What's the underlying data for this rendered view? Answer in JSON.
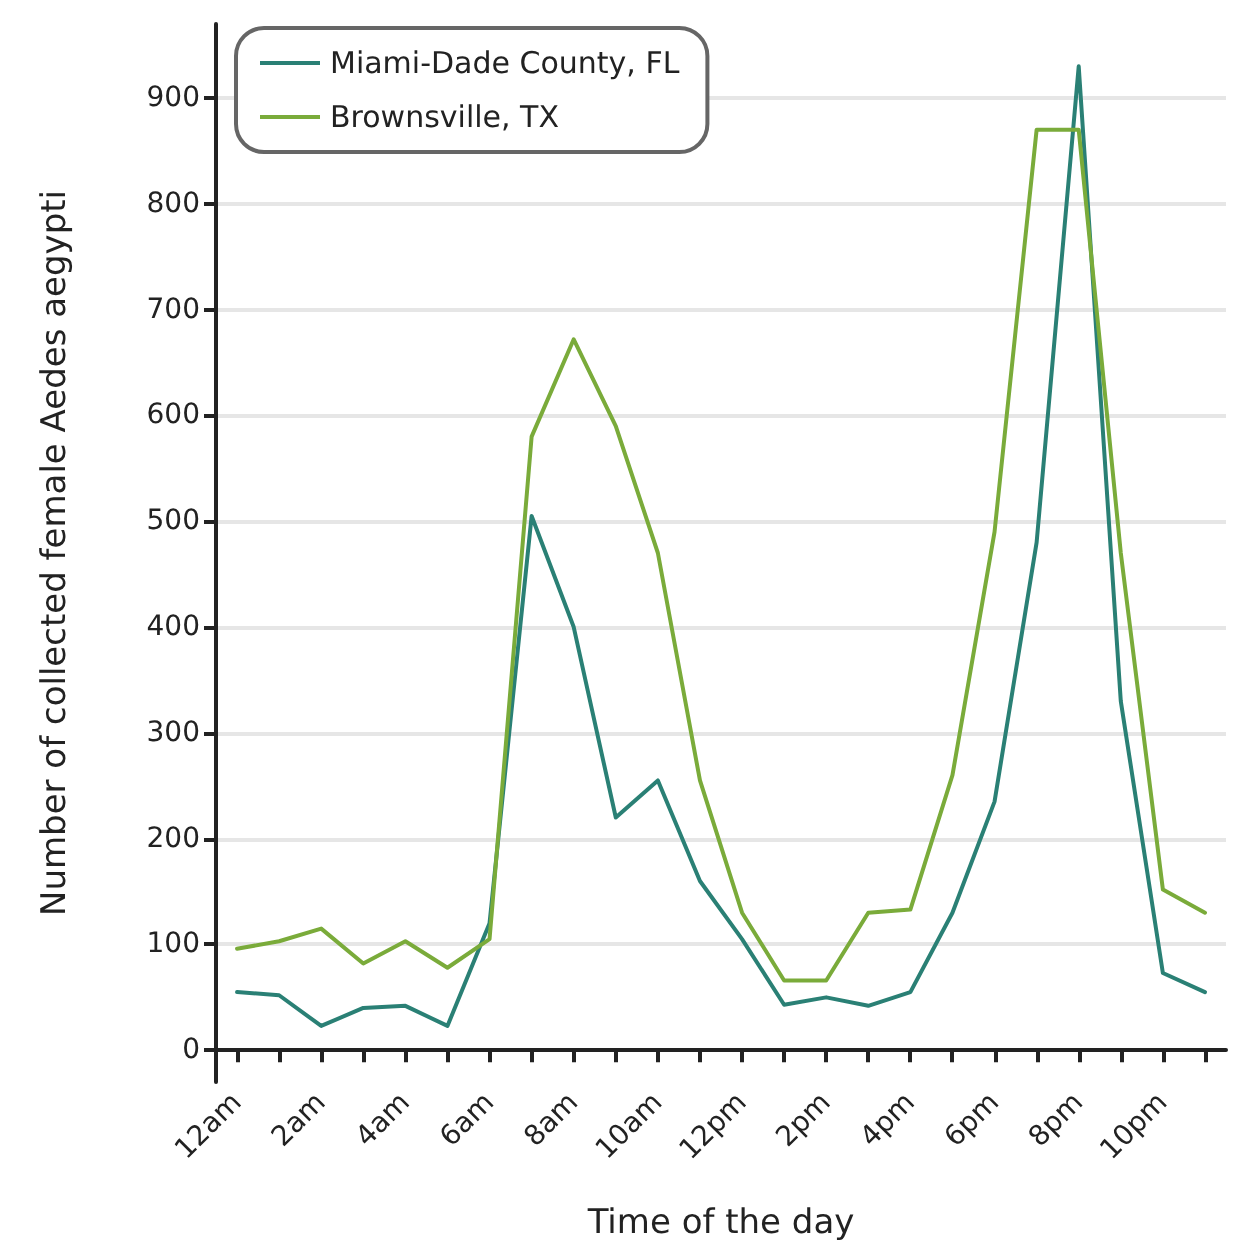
{
  "chart_data": {
    "type": "line",
    "xlabel": "Time of the day",
    "ylabel": "Number of collected female Aedes aegypti",
    "categories": [
      "12am",
      null,
      "2am",
      null,
      "4am",
      null,
      "6am",
      null,
      "8am",
      null,
      "10am",
      null,
      "12pm",
      null,
      "2pm",
      null,
      "4pm",
      null,
      "6pm",
      null,
      "8pm",
      null,
      "10pm",
      null
    ],
    "series": [
      {
        "name": "Miami-Dade County, FL",
        "color": "#2a8075",
        "values": [
          55,
          52,
          23,
          40,
          42,
          23,
          120,
          505,
          400,
          220,
          255,
          160,
          105,
          43,
          50,
          42,
          55,
          130,
          235,
          480,
          930,
          330,
          73,
          55
        ]
      },
      {
        "name": "Brownsville, TX",
        "color": "#7aab3a",
        "values": [
          96,
          103,
          115,
          82,
          103,
          78,
          105,
          580,
          672,
          590,
          470,
          255,
          130,
          66,
          66,
          130,
          133,
          260,
          490,
          870,
          870,
          470,
          152,
          130
        ]
      }
    ],
    "ylim": [
      -30,
      970
    ],
    "yticks": [
      0,
      100,
      200,
      300,
      400,
      500,
      600,
      700,
      800,
      900
    ],
    "grid": "y",
    "legend": "top left",
    "marker": "none",
    "line_style": "solid"
  }
}
